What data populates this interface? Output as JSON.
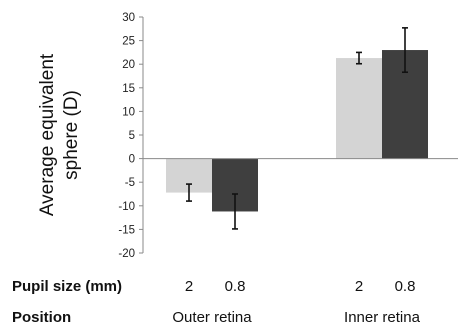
{
  "chart_data": {
    "type": "bar",
    "ylabel": "Average equivalent sphere (D)",
    "ylim": [
      -20,
      30
    ],
    "yticks": [
      30,
      25,
      20,
      15,
      10,
      5,
      0,
      -5,
      -10,
      -15,
      -20
    ],
    "grid": false,
    "groups": [
      {
        "name": "Outer retina",
        "bars": [
          {
            "pupil_size": "2",
            "value": -7.2,
            "error": 1.8,
            "color": "#d4d4d4"
          },
          {
            "pupil_size": "0.8",
            "value": -11.2,
            "error": 3.7,
            "color": "#3f3f3f"
          }
        ]
      },
      {
        "name": "Inner retina",
        "bars": [
          {
            "pupil_size": "2",
            "value": 21.3,
            "error": 1.2,
            "color": "#d4d4d4"
          },
          {
            "pupil_size": "0.8",
            "value": 23.0,
            "error": 4.7,
            "color": "#3f3f3f"
          }
        ]
      }
    ],
    "row_labels": {
      "pupil": "Pupil size (mm)",
      "position": "Position"
    }
  }
}
